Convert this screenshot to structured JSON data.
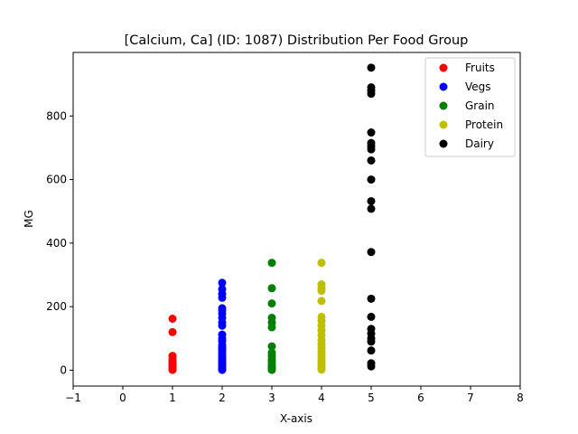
{
  "chart_data": {
    "type": "scatter",
    "title": "[Calcium, Ca] (ID: 1087) Distribution Per Food Group",
    "xlabel": "X-axis",
    "ylabel": "MG",
    "xlim": [
      -1,
      8
    ],
    "ylim": [
      -50,
      1000
    ],
    "xticks": [
      -1,
      0,
      1,
      2,
      3,
      4,
      5,
      6,
      7,
      8
    ],
    "yticks": [
      0,
      200,
      400,
      600,
      800
    ],
    "grid": false,
    "legend_position": "top-right",
    "series": [
      {
        "name": "Fruits",
        "color": "#ff0000",
        "x": 1,
        "values": [
          162,
          120,
          45,
          35,
          28,
          22,
          18,
          14,
          10,
          7,
          5,
          3,
          2,
          1
        ]
      },
      {
        "name": "Vegs",
        "color": "#0000ff",
        "x": 2,
        "values": [
          275,
          255,
          240,
          228,
          195,
          188,
          178,
          165,
          150,
          140,
          112,
          100,
          92,
          80,
          72,
          65,
          58,
          50,
          45,
          40,
          35,
          30,
          25,
          20,
          15,
          10,
          6,
          3,
          1
        ]
      },
      {
        "name": "Grain",
        "color": "#008000",
        "x": 3,
        "values": [
          338,
          258,
          210,
          165,
          150,
          135,
          75,
          55,
          45,
          35,
          28,
          20,
          14,
          8,
          4,
          1
        ]
      },
      {
        "name": "Protein",
        "color": "#bfbf00",
        "x": 4,
        "values": [
          338,
          270,
          258,
          250,
          218,
          168,
          155,
          140,
          125,
          110,
          95,
          82,
          70,
          58,
          48,
          38,
          28,
          20,
          12,
          6,
          2
        ]
      },
      {
        "name": "Dairy",
        "color": "#000000",
        "x": 5,
        "values": [
          952,
          890,
          880,
          870,
          748,
          715,
          705,
          695,
          660,
          600,
          532,
          508,
          372,
          225,
          168,
          130,
          115,
          100,
          90,
          62,
          22,
          12
        ]
      }
    ]
  }
}
